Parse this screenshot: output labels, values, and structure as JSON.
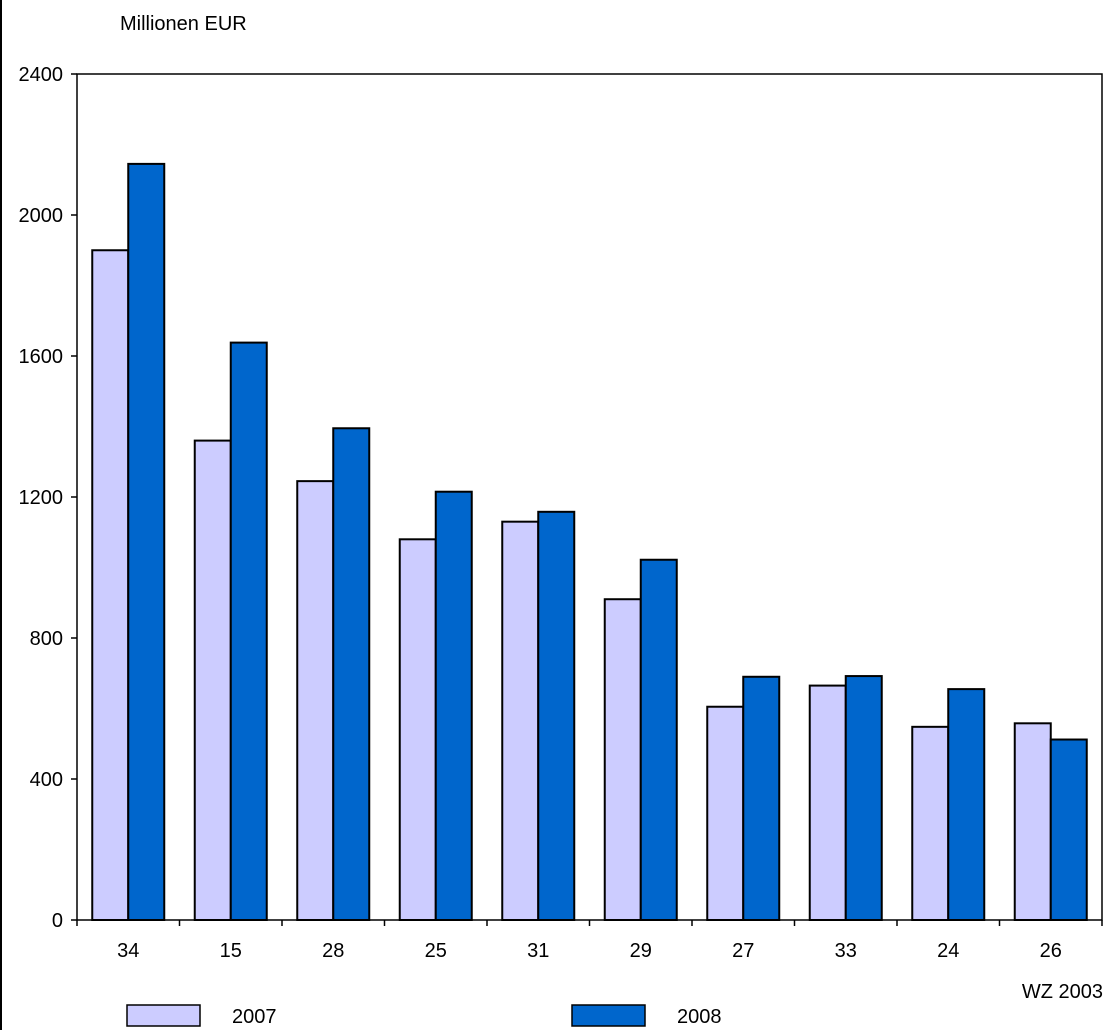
{
  "chart_data": {
    "type": "bar",
    "unit_label": "Millionen EUR",
    "xlabel": "WZ 2003",
    "categories": [
      "34",
      "15",
      "28",
      "25",
      "31",
      "29",
      "27",
      "33",
      "24",
      "26"
    ],
    "series": [
      {
        "name": "2007",
        "color": "#ccccff",
        "values": [
          1900,
          1360,
          1245,
          1080,
          1130,
          910,
          605,
          665,
          548,
          558
        ]
      },
      {
        "name": "2008",
        "color": "#0066cc",
        "values": [
          2145,
          1638,
          1395,
          1215,
          1158,
          1022,
          690,
          692,
          655,
          512
        ]
      }
    ],
    "yticks": [
      0,
      400,
      800,
      1200,
      1600,
      2000,
      2400
    ],
    "ylim": [
      0,
      2400
    ],
    "grid": false,
    "legend_position": "bottom"
  }
}
